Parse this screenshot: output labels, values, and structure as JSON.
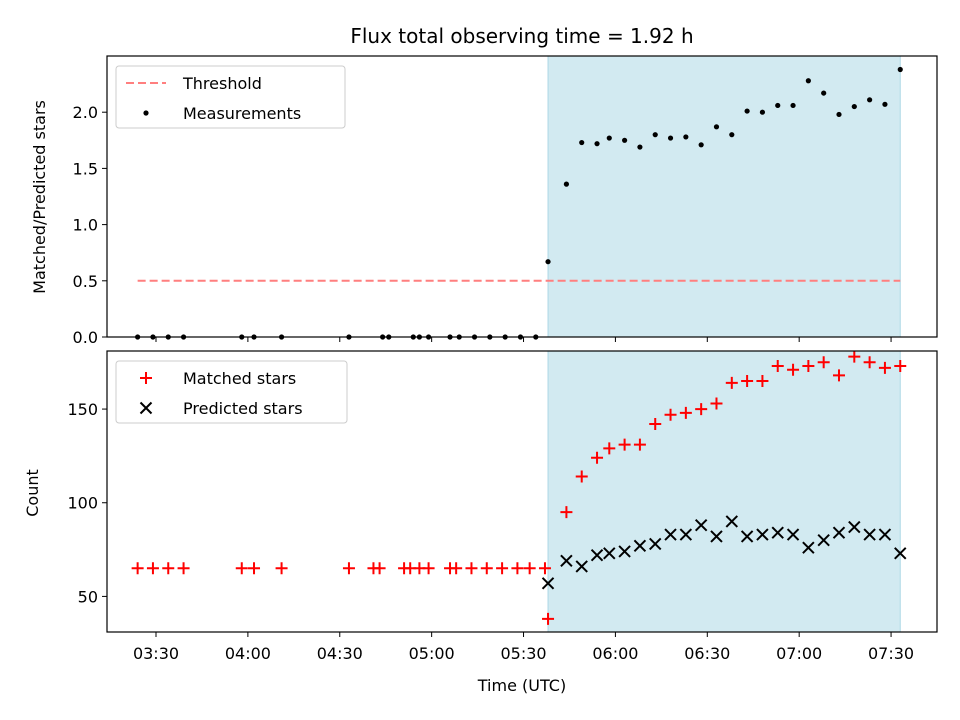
{
  "chart_data": {
    "type": "scatter",
    "title": "Flux total observing time = 1.92 h",
    "xlabel": "Time (UTC)",
    "x_ticks": [
      "03:30",
      "04:00",
      "04:30",
      "05:00",
      "05:30",
      "06:00",
      "06:30",
      "07:00",
      "07:30"
    ],
    "x_range": [
      "03:14",
      "07:45"
    ],
    "observing_window": {
      "start": "05:38",
      "end": "07:33",
      "color": "#add8e6"
    },
    "panels": [
      {
        "ylabel": "Matched/Predicted stars",
        "ylim": [
          0,
          2.5
        ],
        "y_ticks": [
          "0.0",
          "0.5",
          "1.0",
          "1.5",
          "2.0"
        ],
        "y_tick_values": [
          0,
          0.5,
          1.0,
          1.5,
          2.0
        ],
        "legend": {
          "position": "upper left",
          "entries": [
            "Threshold",
            "Measurements"
          ]
        },
        "series": [
          {
            "name": "Threshold",
            "style": "dashed-line",
            "color": "#ff7f7f",
            "points": [
              [
                "03:24",
                0.5
              ],
              [
                "07:33",
                0.5
              ]
            ]
          },
          {
            "name": "Measurements",
            "style": "dot",
            "color": "#000000",
            "points": [
              [
                "03:24",
                0
              ],
              [
                "03:29",
                0
              ],
              [
                "03:34",
                0
              ],
              [
                "03:39",
                0
              ],
              [
                "03:58",
                0
              ],
              [
                "04:02",
                0
              ],
              [
                "04:11",
                0
              ],
              [
                "04:33",
                0
              ],
              [
                "04:44",
                0
              ],
              [
                "04:46",
                0
              ],
              [
                "04:54",
                0
              ],
              [
                "04:56",
                0
              ],
              [
                "04:59",
                0
              ],
              [
                "05:06",
                0
              ],
              [
                "05:09",
                0
              ],
              [
                "05:14",
                0
              ],
              [
                "05:19",
                0
              ],
              [
                "05:24",
                0
              ],
              [
                "05:29",
                0
              ],
              [
                "05:34",
                0
              ],
              [
                "05:38",
                0.67
              ],
              [
                "05:44",
                1.36
              ],
              [
                "05:49",
                1.73
              ],
              [
                "05:54",
                1.72
              ],
              [
                "05:58",
                1.77
              ],
              [
                "06:03",
                1.75
              ],
              [
                "06:08",
                1.69
              ],
              [
                "06:13",
                1.8
              ],
              [
                "06:18",
                1.77
              ],
              [
                "06:23",
                1.78
              ],
              [
                "06:28",
                1.71
              ],
              [
                "06:33",
                1.87
              ],
              [
                "06:38",
                1.8
              ],
              [
                "06:43",
                2.01
              ],
              [
                "06:48",
                2.0
              ],
              [
                "06:53",
                2.06
              ],
              [
                "06:58",
                2.06
              ],
              [
                "07:03",
                2.28
              ],
              [
                "07:08",
                2.17
              ],
              [
                "07:13",
                1.98
              ],
              [
                "07:18",
                2.05
              ],
              [
                "07:23",
                2.11
              ],
              [
                "07:28",
                2.07
              ],
              [
                "07:33",
                2.38
              ]
            ]
          }
        ]
      },
      {
        "ylabel": "Count",
        "ylim": [
          31,
          181
        ],
        "y_ticks": [
          "50",
          "100",
          "150"
        ],
        "y_tick_values": [
          50,
          100,
          150
        ],
        "legend": {
          "position": "upper left",
          "entries": [
            "Matched stars",
            "Predicted stars"
          ]
        },
        "series": [
          {
            "name": "Matched stars",
            "style": "plus",
            "color": "#ff0000",
            "points": [
              [
                "03:24",
                65
              ],
              [
                "03:29",
                65
              ],
              [
                "03:34",
                65
              ],
              [
                "03:39",
                65
              ],
              [
                "03:58",
                65
              ],
              [
                "04:02",
                65
              ],
              [
                "04:11",
                65
              ],
              [
                "04:33",
                65
              ],
              [
                "04:41",
                65
              ],
              [
                "04:43",
                65
              ],
              [
                "04:51",
                65
              ],
              [
                "04:53",
                65
              ],
              [
                "04:56",
                65
              ],
              [
                "04:59",
                65
              ],
              [
                "05:06",
                65
              ],
              [
                "05:08",
                65
              ],
              [
                "05:13",
                65
              ],
              [
                "05:18",
                65
              ],
              [
                "05:23",
                65
              ],
              [
                "05:28",
                65
              ],
              [
                "05:32",
                65
              ],
              [
                "05:37",
                65
              ],
              [
                "05:38",
                38
              ],
              [
                "05:44",
                95
              ],
              [
                "05:49",
                114
              ],
              [
                "05:54",
                124
              ],
              [
                "05:58",
                129
              ],
              [
                "06:03",
                131
              ],
              [
                "06:08",
                131
              ],
              [
                "06:13",
                142
              ],
              [
                "06:18",
                147
              ],
              [
                "06:23",
                148
              ],
              [
                "06:28",
                150
              ],
              [
                "06:33",
                153
              ],
              [
                "06:38",
                164
              ],
              [
                "06:43",
                165
              ],
              [
                "06:48",
                165
              ],
              [
                "06:53",
                173
              ],
              [
                "06:58",
                171
              ],
              [
                "07:03",
                173
              ],
              [
                "07:08",
                175
              ],
              [
                "07:13",
                168
              ],
              [
                "07:18",
                178
              ],
              [
                "07:23",
                175
              ],
              [
                "07:28",
                172
              ],
              [
                "07:33",
                173
              ]
            ]
          },
          {
            "name": "Predicted stars",
            "style": "x",
            "color": "#000000",
            "points": [
              [
                "05:38",
                57
              ],
              [
                "05:44",
                69
              ],
              [
                "05:49",
                66
              ],
              [
                "05:54",
                72
              ],
              [
                "05:58",
                73
              ],
              [
                "06:03",
                74
              ],
              [
                "06:08",
                77
              ],
              [
                "06:13",
                78
              ],
              [
                "06:18",
                83
              ],
              [
                "06:23",
                83
              ],
              [
                "06:28",
                88
              ],
              [
                "06:33",
                82
              ],
              [
                "06:38",
                90
              ],
              [
                "06:43",
                82
              ],
              [
                "06:48",
                83
              ],
              [
                "06:53",
                84
              ],
              [
                "06:58",
                83
              ],
              [
                "07:03",
                76
              ],
              [
                "07:08",
                80
              ],
              [
                "07:13",
                84
              ],
              [
                "07:18",
                87
              ],
              [
                "07:23",
                83
              ],
              [
                "07:28",
                83
              ],
              [
                "07:33",
                73
              ]
            ]
          }
        ]
      }
    ]
  }
}
